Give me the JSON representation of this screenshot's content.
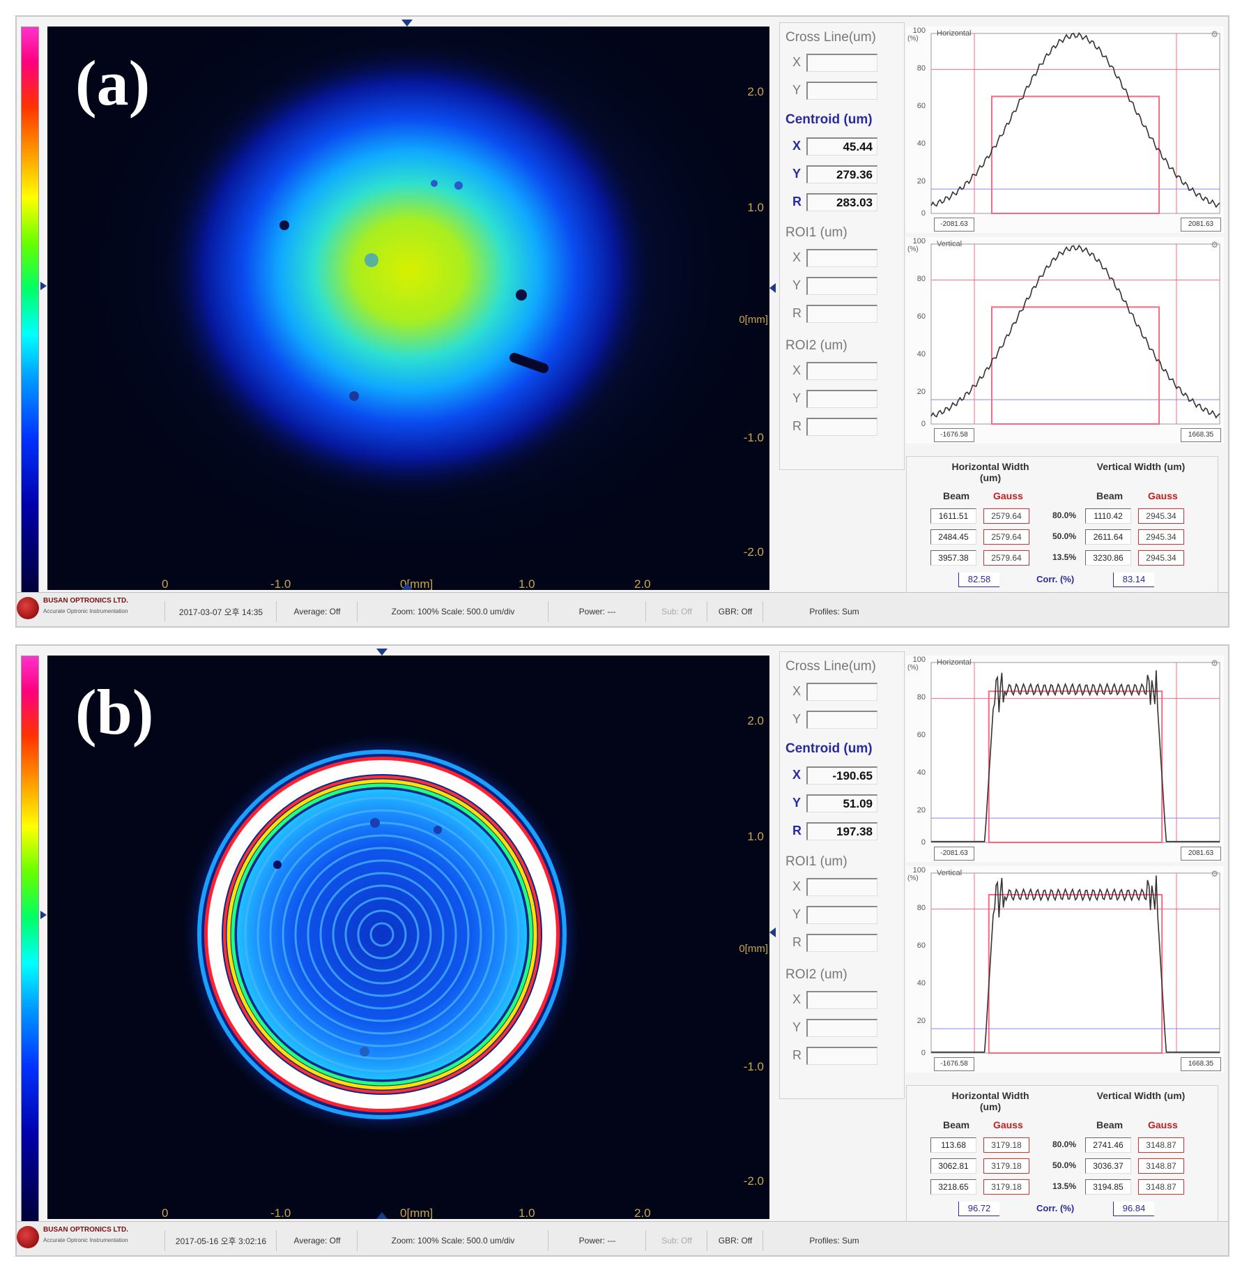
{
  "panels": [
    {
      "label": "(a)",
      "beam": {
        "type": "gaussian"
      },
      "axis": {
        "y_ticks": [
          "2.0",
          "1.0",
          "-1.0",
          "-2.0"
        ],
        "x_ticks": [
          "0",
          "-1.0",
          "0[mm]",
          "1.0",
          "2.0"
        ],
        "y_unit": "0[mm]"
      },
      "cross_line": {
        "title": "Cross Line(um)",
        "x": "",
        "y": ""
      },
      "centroid": {
        "title": "Centroid (um)",
        "x": "45.44",
        "y": "279.36",
        "r": "283.03"
      },
      "roi1": {
        "title": "ROI1 (um)",
        "x": "",
        "y": "",
        "r": ""
      },
      "roi2": {
        "title": "ROI2 (um)",
        "x": "",
        "y": "",
        "r": ""
      },
      "graphs": [
        {
          "title": "Horizontal",
          "x_left": "-2081.63",
          "x_right": "2081.63",
          "y_unit": "(%)",
          "y_ticks": [
            "100",
            "80",
            "60",
            "40",
            "20",
            "0"
          ]
        },
        {
          "title": "Vertical",
          "x_left": "-1676.58",
          "x_right": "1668.35",
          "y_unit": "(%)",
          "y_ticks": [
            "100",
            "80",
            "60",
            "40",
            "20",
            "0"
          ]
        }
      ],
      "profile_data": {
        "horizontal": {
          "shape": "gaussian",
          "peak_pct": 99,
          "gauss_level_pct": 65
        },
        "vertical": {
          "shape": "gaussian",
          "peak_pct": 98,
          "gauss_level_pct": 65
        }
      },
      "widths": {
        "horizontal_label": "Horizontal Width (um)",
        "vertical_label": "Vertical Width (um)",
        "beam_label": "Beam",
        "gauss_label": "Gauss",
        "rows": [
          {
            "pct": "80.0%",
            "h_beam": "1611.51",
            "h_gauss": "2579.64",
            "v_beam": "1110.42",
            "v_gauss": "2945.34"
          },
          {
            "pct": "50.0%",
            "h_beam": "2484.45",
            "h_gauss": "2579.64",
            "v_beam": "2611.64",
            "v_gauss": "2945.34"
          },
          {
            "pct": "13.5%",
            "h_beam": "3957.38",
            "h_gauss": "2579.64",
            "v_beam": "3230.86",
            "v_gauss": "2945.34"
          }
        ],
        "conv_label": "Corr. (%)",
        "conv_h": "82.58",
        "conv_v": "83.14"
      },
      "status": {
        "logo_name": "BUSAN OPTRONICS LTD.",
        "logo_tag": "Accurate Optronic Instrumentation",
        "datetime": "2017-03-07 오후 14:35",
        "average": "Average: Off",
        "zoom": "Zoom: 100%  Scale: 500.0 um/div",
        "power": "Power:  ---",
        "subtract": "Sub: Off",
        "gbr": "GBR: Off",
        "profiles": "Profiles: Sum"
      }
    },
    {
      "label": "(b)",
      "beam": {
        "type": "flat-top-rings"
      },
      "axis": {
        "y_ticks": [
          "2.0",
          "1.0",
          "-1.0",
          "-2.0"
        ],
        "x_ticks": [
          "0",
          "-1.0",
          "0[mm]",
          "1.0",
          "2.0"
        ],
        "y_unit": "0[mm]"
      },
      "cross_line": {
        "title": "Cross Line(um)",
        "x": "",
        "y": ""
      },
      "centroid": {
        "title": "Centroid (um)",
        "x": "-190.65",
        "y": "51.09",
        "r": "197.38"
      },
      "roi1": {
        "title": "ROI1 (um)",
        "x": "",
        "y": "",
        "r": ""
      },
      "roi2": {
        "title": "ROI2 (um)",
        "x": "",
        "y": "",
        "r": ""
      },
      "graphs": [
        {
          "title": "Horizontal",
          "x_left": "-2081.63",
          "x_right": "2081.63",
          "y_unit": "(%)",
          "y_ticks": [
            "100",
            "80",
            "60",
            "40",
            "20",
            "0"
          ]
        },
        {
          "title": "Vertical",
          "x_left": "-1676.58",
          "x_right": "1668.35",
          "y_unit": "(%)",
          "y_ticks": [
            "100",
            "80",
            "60",
            "40",
            "20",
            "0"
          ]
        }
      ],
      "profile_data": {
        "horizontal": {
          "shape": "flat-top",
          "plateau_pct": 85,
          "gauss_level_pct": 84
        },
        "vertical": {
          "shape": "flat-top",
          "plateau_pct": 88,
          "gauss_level_pct": 88
        }
      },
      "widths": {
        "horizontal_label": "Horizontal Width (um)",
        "vertical_label": "Vertical Width (um)",
        "beam_label": "Beam",
        "gauss_label": "Gauss",
        "rows": [
          {
            "pct": "80.0%",
            "h_beam": "113.68",
            "h_gauss": "3179.18",
            "v_beam": "2741.46",
            "v_gauss": "3148.87"
          },
          {
            "pct": "50.0%",
            "h_beam": "3062.81",
            "h_gauss": "3179.18",
            "v_beam": "3036.37",
            "v_gauss": "3148.87"
          },
          {
            "pct": "13.5%",
            "h_beam": "3218.65",
            "h_gauss": "3179.18",
            "v_beam": "3194.85",
            "v_gauss": "3148.87"
          }
        ],
        "conv_label": "Corr. (%)",
        "conv_h": "96.72",
        "conv_v": "96.84"
      },
      "status": {
        "logo_name": "BUSAN OPTRONICS LTD.",
        "logo_tag": "Accurate Optronic Instrumentation",
        "datetime": "2017-05-16 오후 3:02:16",
        "average": "Average: Off",
        "zoom": "Zoom: 100%  Scale: 500.0 um/div",
        "power": "Power:  ---",
        "subtract": "Sub: Off",
        "gbr": "GBR: Off",
        "profiles": "Profiles: Sum"
      }
    }
  ],
  "colors": {
    "accent_blue": "#2a2aa0",
    "gauss_red": "#c02020",
    "axis_gold": "#c9a74a",
    "profile_red": "#ff6680"
  }
}
